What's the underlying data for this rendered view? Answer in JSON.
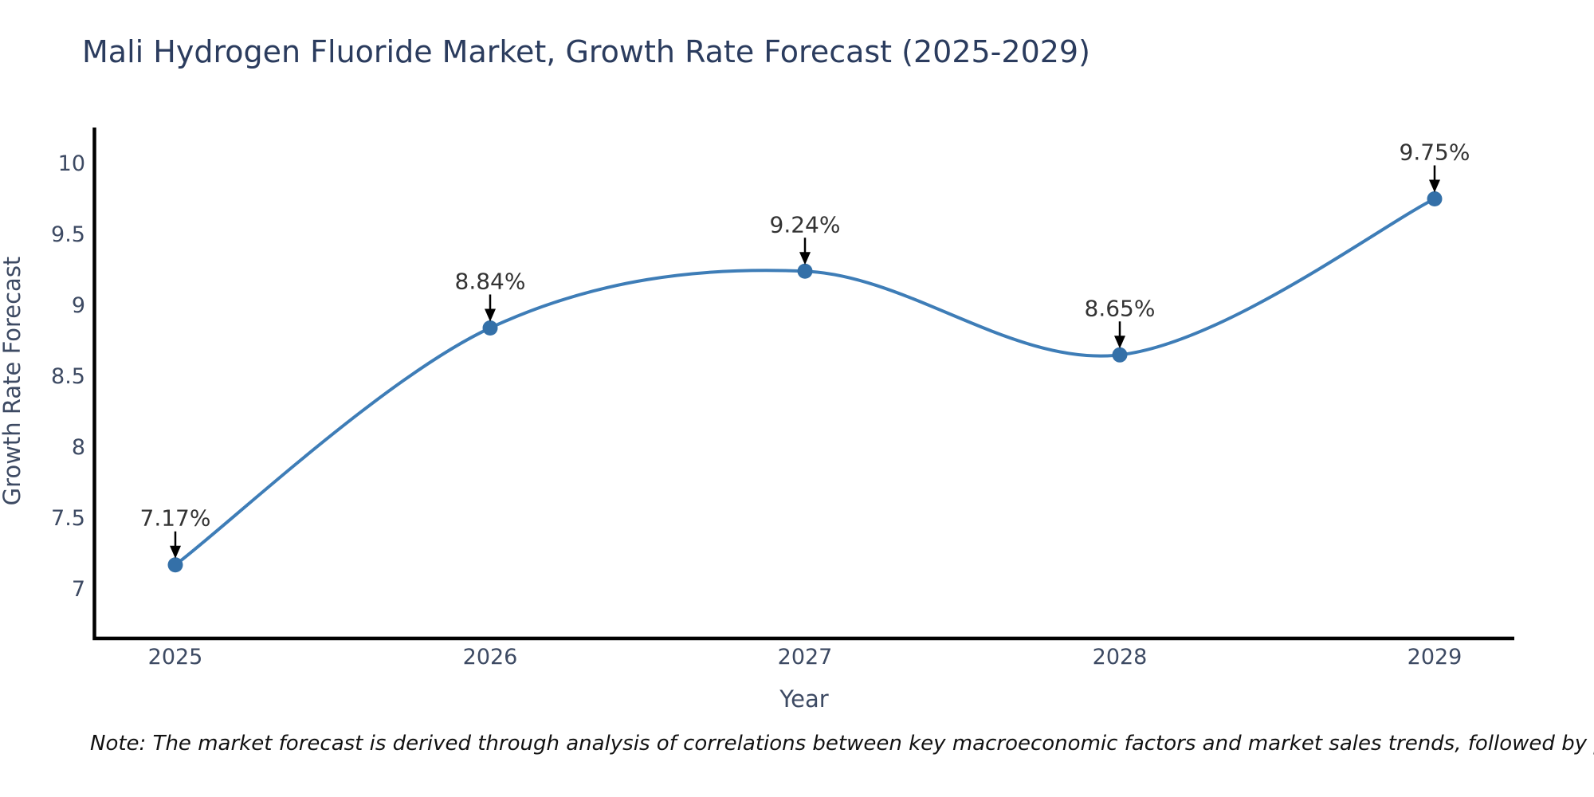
{
  "title": "Mali Hydrogen Fluoride Market, Growth Rate Forecast (2025-2029)",
  "note": "Note: The market forecast is derived through analysis of correlations between key macroeconomic factors and market sales trends, followed by predictive modeling to project future sales",
  "colors": {
    "line": "#3e7db7",
    "marker": "#3470a8",
    "arrow": "#000000",
    "axis": "#000000",
    "title": "#2b3c5e",
    "tick": "#3d4a63",
    "annotation": "#333333"
  },
  "chart_data": {
    "type": "line",
    "title": "Mali Hydrogen Fluoride Market, Growth Rate Forecast (2025-2029)",
    "xlabel": "Year",
    "ylabel": "Growth Rate Forecast",
    "x": [
      2025,
      2026,
      2027,
      2028,
      2029
    ],
    "values": [
      7.17,
      8.84,
      9.24,
      8.65,
      9.75
    ],
    "point_labels": [
      "7.17%",
      "8.84%",
      "9.24%",
      "8.65%",
      "9.75%"
    ],
    "yticks": [
      7,
      7.5,
      8,
      8.5,
      9,
      9.5,
      10
    ],
    "xticks": [
      "2025",
      "2026",
      "2027",
      "2028",
      "2029"
    ],
    "ylim": [
      6.65,
      10.25
    ],
    "line_shape": "spline",
    "grid": false,
    "legend": "none",
    "annotations": "value labels with black down-arrows above each point"
  }
}
